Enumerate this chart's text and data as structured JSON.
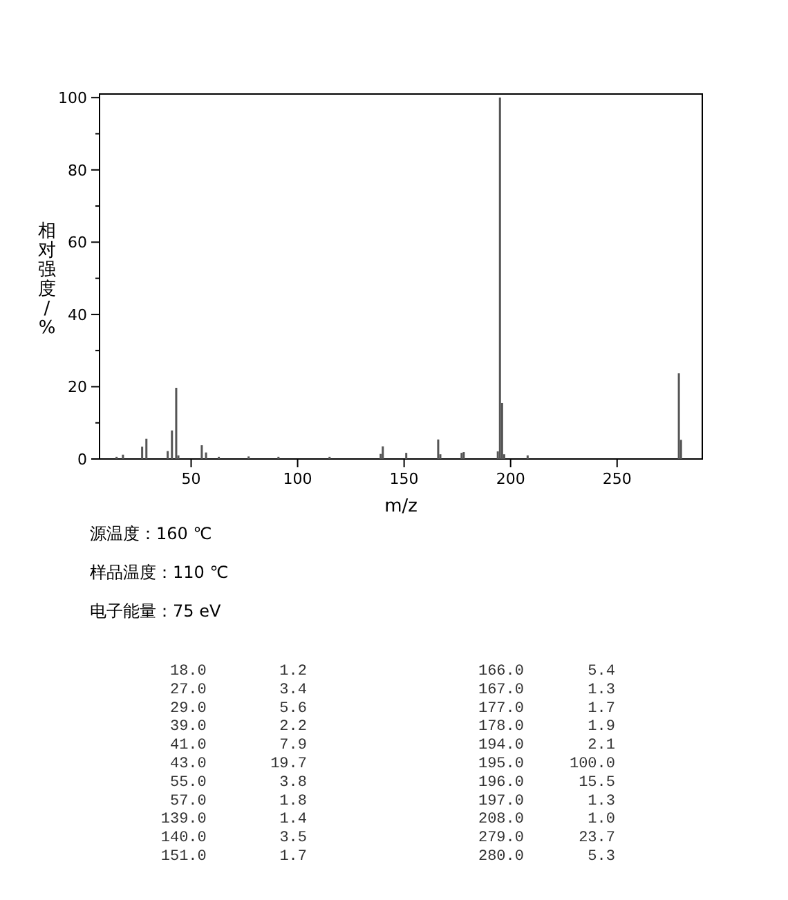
{
  "chart_data": {
    "type": "bar",
    "xlabel": "m/z",
    "ylabel": "相对强度/%",
    "annotations": [
      "源温度：160 ℃",
      "样品温度：110 ℃",
      "电子能量：75 eV",
      "18.0        1.2",
      "27.0        3.4",
      "29.0        5.6",
      "39.0        2.2",
      "41.0        7.9",
      "43.0       19.7",
      "55.0        3.8",
      "57.0        1.8",
      "139.0        1.4",
      "140.0        3.5",
      "151.0        1.7",
      "166.0       5.4",
      "167.0       1.3",
      "177.0       1.7",
      "178.0       1.9",
      "194.0       2.1",
      "195.0     100.0",
      "196.0      15.5",
      "197.0       1.3",
      "208.0       1.0",
      "279.0      23.7",
      "280.0       5.3"
    ],
    "x": [
      15,
      18,
      27,
      29,
      39,
      41,
      43,
      44,
      55,
      57,
      63,
      77,
      91,
      115,
      139,
      140,
      151,
      166,
      167,
      177,
      178,
      194,
      195,
      196,
      197,
      208,
      279,
      280
    ],
    "values": [
      0.6,
      1.2,
      3.4,
      5.6,
      2.2,
      7.9,
      19.7,
      1.0,
      3.8,
      1.8,
      0.6,
      0.7,
      0.6,
      0.6,
      1.4,
      3.5,
      1.7,
      5.4,
      1.3,
      1.7,
      1.9,
      2.1,
      100.0,
      15.5,
      1.3,
      1.0,
      23.7,
      5.3
    ],
    "color": "#555555",
    "xlim": [
      7,
      290
    ],
    "ylim": [
      0,
      101
    ],
    "xticks": [
      50,
      100,
      150,
      200,
      250
    ],
    "yticks": [
      0,
      {
        "value": 10,
        "label": null
      },
      20,
      {
        "value": 30,
        "label": null
      },
      40,
      {
        "value": 50,
        "label": null
      },
      60,
      {
        "value": 70,
        "label": null
      },
      80,
      {
        "value": 90,
        "label": null
      },
      100
    ]
  }
}
